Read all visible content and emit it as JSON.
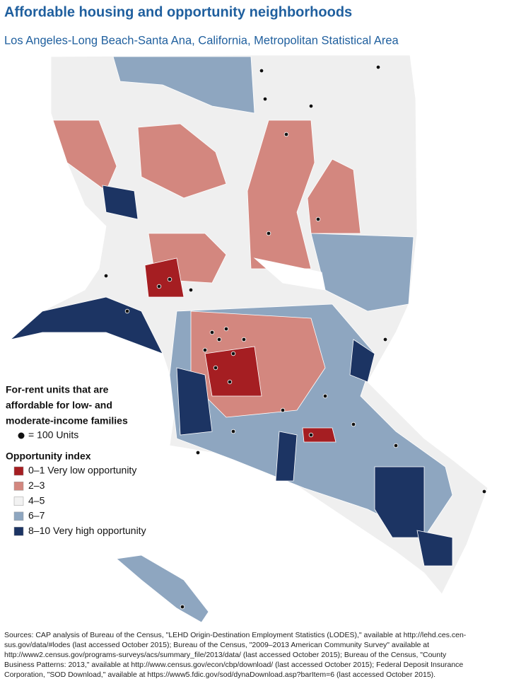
{
  "header": {
    "title": "Affordable housing and opportunity neighborhoods",
    "subtitle": "Los Angeles-Long Beach-Santa Ana, California, Metropolitan Statistical Area"
  },
  "legend": {
    "units_title_lines": [
      "For-rent units that are",
      "affordable for low- and",
      "moderate-income families"
    ],
    "units_label": "= 100 Units",
    "index_title": "Opportunity index",
    "items": [
      {
        "label": "0–1 Very low opportunity",
        "color": "#a51e22"
      },
      {
        "label": "2–3",
        "color": "#d3877f"
      },
      {
        "label": "4–5",
        "color": "#f2f2f2"
      },
      {
        "label": "6–7",
        "color": "#8ea6c0"
      },
      {
        "label": "8–10 Very high opportunity",
        "color": "#1c3463"
      }
    ]
  },
  "sources": [
    "Sources: CAP analysis of Bureau of the Census, \"LEHD Origin-Destination Employment Statistics (LODES),\" available at http://lehd.ces.cen-",
    "sus.gov/data/#lodes (last accessed October 2015); Bureau of the Census, \"2009–2013 American Community Survey\" available at",
    "http://www2.census.gov/programs-surveys/acs/summary_file/2013/data/ (last accessed October 2015); Bureau of the Census, \"County",
    "Business Patterns: 2013,\" available at http://www.census.gov/econ/cbp/download/ (last accessed October 2015); Federal Deposit Insurance",
    "Corporation, \"SOD Download,\" available at https://www5.fdic.gov/sod/dynaDownload.asp?barItem=6 (last accessed October 2015)."
  ]
}
